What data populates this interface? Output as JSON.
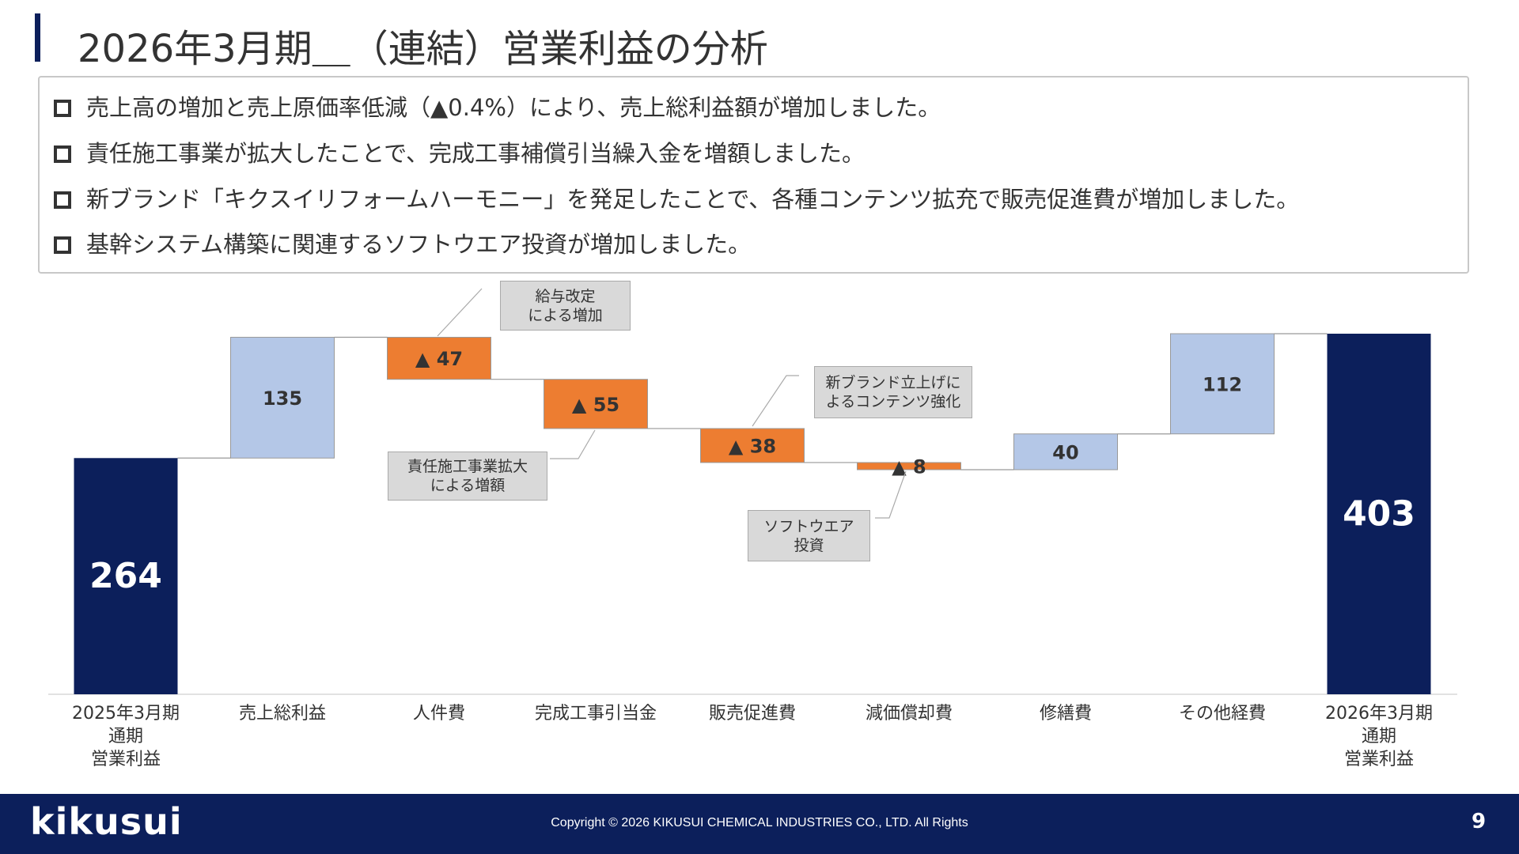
{
  "header": {
    "title": "2026年3月期＿（連結）営業利益の分析"
  },
  "bullets": [
    "売上高の増加と売上原価率低減（▲0.4%）により、売上総利益額が増加しました。",
    "責任施工事業が拡大したことで、完成工事補償引当繰入金を増額しました。",
    "新ブランド「キクスイリフォームハーモニー」を発足したことで、各種コンテンツ拡充で販売促進費が増加しました。",
    "基幹システム構築に関連するソフトウエア投資が増加しました。"
  ],
  "chart_data": {
    "type": "waterfall",
    "categories": [
      "2025年3月期\n通期\n営業利益",
      "売上総利益",
      "人件費",
      "完成工事引当金",
      "販売促進費",
      "減価償却費",
      "修繕費",
      "その他経費",
      "2026年3月期\n通期\n営業利益"
    ],
    "measure": [
      "absolute",
      "relative",
      "relative",
      "relative",
      "relative",
      "relative",
      "relative",
      "relative",
      "absolute"
    ],
    "values": [
      264,
      135,
      -47,
      -55,
      -38,
      -8,
      40,
      112,
      403
    ],
    "value_labels": [
      "264",
      "135",
      "▲ 47",
      "▲ 55",
      "▲ 38",
      "▲ 8",
      "40",
      "112",
      "403"
    ],
    "colors": {
      "total": "#0c1f5b",
      "increase": "#b4c7e7",
      "decrease": "#ed7d31"
    },
    "annotations": [
      "給与改定\nによる増加",
      "責任施工事業拡大\nによる増額",
      "新ブランド立上げに\nよるコンテンツ強化",
      "ソフトウエア\n投資"
    ]
  },
  "footer": {
    "logo": "kikusui",
    "copyright": "Copyright © 2026 KIKUSUI CHEMICAL INDUSTRIES CO., LTD. All Rights",
    "page": "9"
  }
}
